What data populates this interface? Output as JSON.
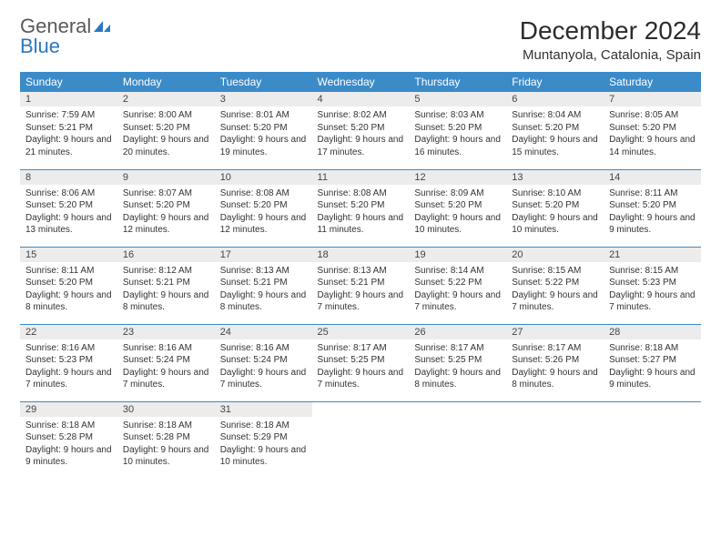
{
  "logo": {
    "text1": "General",
    "text2": "Blue",
    "accent": "#2b78c2"
  },
  "title": "December 2024",
  "location": "Muntanyola, Catalonia, Spain",
  "colors": {
    "header_bg": "#3b8bc9",
    "header_fg": "#ffffff",
    "daynum_bg": "#ececec",
    "border": "#3b8bc9",
    "text": "#333333"
  },
  "weekdays": [
    "Sunday",
    "Monday",
    "Tuesday",
    "Wednesday",
    "Thursday",
    "Friday",
    "Saturday"
  ],
  "days": [
    {
      "n": "1",
      "sr": "7:59 AM",
      "ss": "5:21 PM",
      "dl": "9 hours and 21 minutes."
    },
    {
      "n": "2",
      "sr": "8:00 AM",
      "ss": "5:20 PM",
      "dl": "9 hours and 20 minutes."
    },
    {
      "n": "3",
      "sr": "8:01 AM",
      "ss": "5:20 PM",
      "dl": "9 hours and 19 minutes."
    },
    {
      "n": "4",
      "sr": "8:02 AM",
      "ss": "5:20 PM",
      "dl": "9 hours and 17 minutes."
    },
    {
      "n": "5",
      "sr": "8:03 AM",
      "ss": "5:20 PM",
      "dl": "9 hours and 16 minutes."
    },
    {
      "n": "6",
      "sr": "8:04 AM",
      "ss": "5:20 PM",
      "dl": "9 hours and 15 minutes."
    },
    {
      "n": "7",
      "sr": "8:05 AM",
      "ss": "5:20 PM",
      "dl": "9 hours and 14 minutes."
    },
    {
      "n": "8",
      "sr": "8:06 AM",
      "ss": "5:20 PM",
      "dl": "9 hours and 13 minutes."
    },
    {
      "n": "9",
      "sr": "8:07 AM",
      "ss": "5:20 PM",
      "dl": "9 hours and 12 minutes."
    },
    {
      "n": "10",
      "sr": "8:08 AM",
      "ss": "5:20 PM",
      "dl": "9 hours and 12 minutes."
    },
    {
      "n": "11",
      "sr": "8:08 AM",
      "ss": "5:20 PM",
      "dl": "9 hours and 11 minutes."
    },
    {
      "n": "12",
      "sr": "8:09 AM",
      "ss": "5:20 PM",
      "dl": "9 hours and 10 minutes."
    },
    {
      "n": "13",
      "sr": "8:10 AM",
      "ss": "5:20 PM",
      "dl": "9 hours and 10 minutes."
    },
    {
      "n": "14",
      "sr": "8:11 AM",
      "ss": "5:20 PM",
      "dl": "9 hours and 9 minutes."
    },
    {
      "n": "15",
      "sr": "8:11 AM",
      "ss": "5:20 PM",
      "dl": "9 hours and 8 minutes."
    },
    {
      "n": "16",
      "sr": "8:12 AM",
      "ss": "5:21 PM",
      "dl": "9 hours and 8 minutes."
    },
    {
      "n": "17",
      "sr": "8:13 AM",
      "ss": "5:21 PM",
      "dl": "9 hours and 8 minutes."
    },
    {
      "n": "18",
      "sr": "8:13 AM",
      "ss": "5:21 PM",
      "dl": "9 hours and 7 minutes."
    },
    {
      "n": "19",
      "sr": "8:14 AM",
      "ss": "5:22 PM",
      "dl": "9 hours and 7 minutes."
    },
    {
      "n": "20",
      "sr": "8:15 AM",
      "ss": "5:22 PM",
      "dl": "9 hours and 7 minutes."
    },
    {
      "n": "21",
      "sr": "8:15 AM",
      "ss": "5:23 PM",
      "dl": "9 hours and 7 minutes."
    },
    {
      "n": "22",
      "sr": "8:16 AM",
      "ss": "5:23 PM",
      "dl": "9 hours and 7 minutes."
    },
    {
      "n": "23",
      "sr": "8:16 AM",
      "ss": "5:24 PM",
      "dl": "9 hours and 7 minutes."
    },
    {
      "n": "24",
      "sr": "8:16 AM",
      "ss": "5:24 PM",
      "dl": "9 hours and 7 minutes."
    },
    {
      "n": "25",
      "sr": "8:17 AM",
      "ss": "5:25 PM",
      "dl": "9 hours and 7 minutes."
    },
    {
      "n": "26",
      "sr": "8:17 AM",
      "ss": "5:25 PM",
      "dl": "9 hours and 8 minutes."
    },
    {
      "n": "27",
      "sr": "8:17 AM",
      "ss": "5:26 PM",
      "dl": "9 hours and 8 minutes."
    },
    {
      "n": "28",
      "sr": "8:18 AM",
      "ss": "5:27 PM",
      "dl": "9 hours and 9 minutes."
    },
    {
      "n": "29",
      "sr": "8:18 AM",
      "ss": "5:28 PM",
      "dl": "9 hours and 9 minutes."
    },
    {
      "n": "30",
      "sr": "8:18 AM",
      "ss": "5:28 PM",
      "dl": "9 hours and 10 minutes."
    },
    {
      "n": "31",
      "sr": "8:18 AM",
      "ss": "5:29 PM",
      "dl": "9 hours and 10 minutes."
    }
  ],
  "labels": {
    "sunrise": "Sunrise: ",
    "sunset": "Sunset: ",
    "daylight": "Daylight: "
  }
}
